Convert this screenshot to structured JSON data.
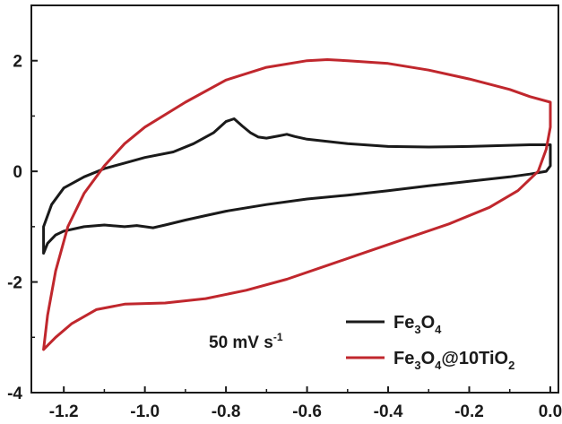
{
  "chart_data": {
    "type": "line",
    "title": "",
    "xlabel": "",
    "ylabel": "",
    "xlim": [
      -1.28,
      0.02
    ],
    "ylim": [
      -4,
      3
    ],
    "grid": false,
    "legend_position": "bottom-right",
    "x_ticks": [
      -1.2,
      -1.0,
      -0.8,
      -0.6,
      -0.4,
      -0.2,
      0.0
    ],
    "x_tick_labels": [
      "-1.2",
      "-1.0",
      "-0.8",
      "-0.6",
      "-0.4",
      "-0.2",
      "0.0"
    ],
    "y_ticks": [
      -4,
      -2,
      0,
      2
    ],
    "y_tick_labels": [
      "-4",
      "-2",
      "0",
      "2"
    ],
    "annotation": {
      "text": "50 mV s",
      "superscript": "-1"
    },
    "series": [
      {
        "name": "Fe3O4",
        "legend_parts": [
          {
            "t": "Fe",
            "sub": false
          },
          {
            "t": "3",
            "sub": true
          },
          {
            "t": "O",
            "sub": false
          },
          {
            "t": "4",
            "sub": true
          }
        ],
        "color": "#1a1a1a",
        "points": [
          [
            -1.25,
            -1.48
          ],
          [
            -1.24,
            -1.3
          ],
          [
            -1.22,
            -1.15
          ],
          [
            -1.2,
            -1.08
          ],
          [
            -1.15,
            -1.0
          ],
          [
            -1.1,
            -0.97
          ],
          [
            -1.05,
            -1.0
          ],
          [
            -1.02,
            -0.98
          ],
          [
            -0.98,
            -1.02
          ],
          [
            -0.95,
            -0.97
          ],
          [
            -0.9,
            -0.88
          ],
          [
            -0.85,
            -0.8
          ],
          [
            -0.8,
            -0.72
          ],
          [
            -0.7,
            -0.6
          ],
          [
            -0.6,
            -0.5
          ],
          [
            -0.5,
            -0.43
          ],
          [
            -0.4,
            -0.35
          ],
          [
            -0.3,
            -0.26
          ],
          [
            -0.2,
            -0.18
          ],
          [
            -0.1,
            -0.1
          ],
          [
            -0.05,
            -0.05
          ],
          [
            -0.01,
            0.0
          ],
          [
            0.0,
            0.1
          ],
          [
            0.0,
            0.3
          ],
          [
            0.0,
            0.48
          ],
          [
            -0.05,
            0.48
          ],
          [
            -0.1,
            0.47
          ],
          [
            -0.2,
            0.45
          ],
          [
            -0.3,
            0.44
          ],
          [
            -0.4,
            0.45
          ],
          [
            -0.5,
            0.5
          ],
          [
            -0.6,
            0.58
          ],
          [
            -0.63,
            0.63
          ],
          [
            -0.65,
            0.67
          ],
          [
            -0.67,
            0.64
          ],
          [
            -0.7,
            0.6
          ],
          [
            -0.72,
            0.62
          ],
          [
            -0.74,
            0.7
          ],
          [
            -0.76,
            0.82
          ],
          [
            -0.78,
            0.95
          ],
          [
            -0.8,
            0.9
          ],
          [
            -0.83,
            0.7
          ],
          [
            -0.88,
            0.5
          ],
          [
            -0.93,
            0.35
          ],
          [
            -1.0,
            0.25
          ],
          [
            -1.05,
            0.15
          ],
          [
            -1.1,
            0.05
          ],
          [
            -1.15,
            -0.1
          ],
          [
            -1.2,
            -0.3
          ],
          [
            -1.23,
            -0.6
          ],
          [
            -1.25,
            -1.0
          ],
          [
            -1.25,
            -1.48
          ]
        ]
      },
      {
        "name": "Fe3O4@10TiO2",
        "legend_parts": [
          {
            "t": "Fe",
            "sub": false
          },
          {
            "t": "3",
            "sub": true
          },
          {
            "t": "O",
            "sub": false
          },
          {
            "t": "4",
            "sub": true
          },
          {
            "t": "@10TiO",
            "sub": false
          },
          {
            "t": "2",
            "sub": true
          }
        ],
        "color": "#c0272d",
        "points": [
          [
            -1.25,
            -3.22
          ],
          [
            -1.22,
            -3.0
          ],
          [
            -1.18,
            -2.75
          ],
          [
            -1.12,
            -2.5
          ],
          [
            -1.05,
            -2.4
          ],
          [
            -0.95,
            -2.38
          ],
          [
            -0.85,
            -2.3
          ],
          [
            -0.75,
            -2.15
          ],
          [
            -0.65,
            -1.95
          ],
          [
            -0.55,
            -1.7
          ],
          [
            -0.45,
            -1.45
          ],
          [
            -0.35,
            -1.2
          ],
          [
            -0.25,
            -0.95
          ],
          [
            -0.15,
            -0.65
          ],
          [
            -0.08,
            -0.35
          ],
          [
            -0.03,
            0.0
          ],
          [
            -0.01,
            0.4
          ],
          [
            0.0,
            0.8
          ],
          [
            0.0,
            1.25
          ],
          [
            -0.05,
            1.35
          ],
          [
            -0.1,
            1.48
          ],
          [
            -0.2,
            1.67
          ],
          [
            -0.3,
            1.83
          ],
          [
            -0.4,
            1.95
          ],
          [
            -0.5,
            2.0
          ],
          [
            -0.55,
            2.02
          ],
          [
            -0.6,
            2.0
          ],
          [
            -0.7,
            1.88
          ],
          [
            -0.8,
            1.65
          ],
          [
            -0.9,
            1.25
          ],
          [
            -1.0,
            0.8
          ],
          [
            -1.05,
            0.5
          ],
          [
            -1.1,
            0.1
          ],
          [
            -1.15,
            -0.4
          ],
          [
            -1.19,
            -1.0
          ],
          [
            -1.22,
            -1.8
          ],
          [
            -1.24,
            -2.6
          ],
          [
            -1.25,
            -3.22
          ]
        ]
      }
    ]
  }
}
